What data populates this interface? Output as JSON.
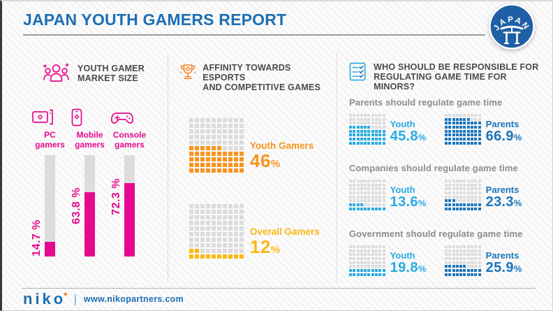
{
  "shared": {
    "percent_sign": "%"
  },
  "header": {
    "title": "JAPAN YOUTH GAMERS REPORT",
    "badge_text": "JAPAN"
  },
  "colors": {
    "magenta": "#e50a8d",
    "orange": "#f7941e",
    "yellow": "#fdb714",
    "youth_blue": "#29abe2",
    "parents_blue": "#1b75bc",
    "title_blue": "#1c6fb5",
    "badge_blue": "#1e5fa5",
    "heading_gray": "#4a4a4a",
    "subtitle_gray": "#8d8d8d",
    "cell_gray": "#dcdcdc"
  },
  "sections": {
    "market": {
      "title1": "YOUTH GAMER",
      "title2": "MARKET SIZE",
      "bars": [
        {
          "label1": "PC",
          "label2": "gamers",
          "value_text": "14.7 %"
        },
        {
          "label1": "Mobile",
          "label2": "gamers",
          "value_text": "63.8 %"
        },
        {
          "label1": "Console",
          "label2": "gamers",
          "value_text": "72.3 %"
        }
      ]
    },
    "affinity": {
      "title1": "AFFINITY TOWARDS ESPORTS",
      "title2": "AND COMPETITIVE GAMES",
      "waffles": [
        {
          "label": "Youth Gamers",
          "value_text": "46"
        },
        {
          "label": "Overall Gamers",
          "value_text": "12"
        }
      ]
    },
    "regulation": {
      "title1": "WHO SHOULD BE RESPONSIBLE FOR",
      "title2": "REGULATING GAME TIME FOR MINORS?",
      "groups": [
        {
          "subtitle": "Parents should regulate game time",
          "youth_label": "Youth",
          "youth_value": "45.8",
          "parents_label": "Parents",
          "parents_value": "66.9"
        },
        {
          "subtitle": "Companies should regulate game time",
          "youth_label": "Youth",
          "youth_value": "13.6",
          "parents_label": "Parents",
          "parents_value": "23.3"
        },
        {
          "subtitle": "Government should regulate game time",
          "youth_label": "Youth",
          "youth_value": "19.8",
          "parents_label": "Parents",
          "parents_value": "25.9"
        }
      ]
    }
  },
  "footer": {
    "logo": "niko",
    "logo_dot": "•",
    "separator": "|",
    "url": "www.nikopartners.com"
  },
  "chart_data": [
    {
      "type": "bar",
      "title": "Youth Gamer Market Size",
      "categories": [
        "PC gamers",
        "Mobile gamers",
        "Console gamers"
      ],
      "values": [
        14.7,
        63.8,
        72.3
      ],
      "unit": "%",
      "ylim": [
        0,
        100
      ],
      "orientation": "vertical",
      "bar_color": "#e50a8d",
      "track_color": "#dcdcdc"
    },
    {
      "type": "waffle",
      "title": "Affinity towards esports and competitive games",
      "grid": {
        "rows": 10,
        "cols": 10,
        "cell_pct": 1
      },
      "series": [
        {
          "name": "Youth Gamers",
          "value": 46,
          "color": "#f7941e"
        },
        {
          "name": "Overall Gamers",
          "value": 12,
          "color": "#fdb714"
        }
      ],
      "unit": "%"
    },
    {
      "type": "waffle",
      "title": "Who should be responsible for regulating game time for minors?",
      "grid": {
        "rows": 8,
        "cols": 10,
        "cell_pct": 1
      },
      "categories": [
        "Parents should regulate game time",
        "Companies should regulate game time",
        "Government should regulate game time"
      ],
      "series": [
        {
          "name": "Youth",
          "color": "#29abe2",
          "values": [
            45.8,
            13.6,
            19.8
          ]
        },
        {
          "name": "Parents",
          "color": "#1b75bc",
          "values": [
            66.9,
            23.3,
            25.9
          ]
        }
      ],
      "unit": "%"
    }
  ]
}
